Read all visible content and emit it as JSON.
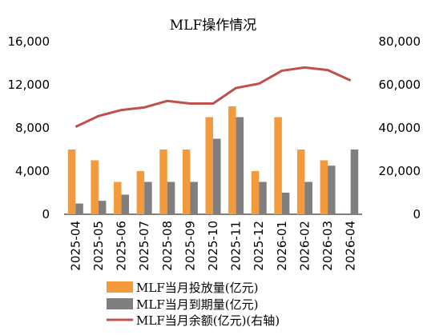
{
  "chart_data": {
    "type": "bar",
    "title": "MLF操作情况",
    "categories": [
      "2025-04",
      "2025-05",
      "2025-06",
      "2025-07",
      "2025-08",
      "2025-09",
      "2025-10",
      "2025-11",
      "2025-12",
      "2026-01",
      "2026-02",
      "2026-03",
      "2026-04"
    ],
    "series": [
      {
        "name": "MLF当月投放量(亿元)",
        "type": "bar",
        "axis": "left",
        "color": "#F39A3C",
        "values": [
          6000,
          5000,
          3000,
          4000,
          6000,
          6000,
          9000,
          10000,
          4000,
          9000,
          6000,
          5000,
          0
        ]
      },
      {
        "name": "MLF当月到期量(亿元)",
        "type": "bar",
        "axis": "left",
        "color": "#7F7F7F",
        "values": [
          1000,
          1250,
          1820,
          3000,
          3000,
          3000,
          7000,
          9000,
          3000,
          2000,
          3000,
          4500,
          6000
        ]
      },
      {
        "name": "MLF当月余额(亿元)(右轴)",
        "type": "line",
        "axis": "right",
        "color": "#C0504D",
        "values": [
          40500,
          45500,
          48300,
          49500,
          52500,
          51300,
          51300,
          58500,
          60500,
          66500,
          68000,
          66800,
          62000
        ]
      }
    ],
    "y_left": {
      "min": 0,
      "max": 16000,
      "ticks": [
        "0",
        "4,000",
        "8,000",
        "12,000",
        "16,000"
      ]
    },
    "y_right": {
      "min": 0,
      "max": 80000,
      "ticks": [
        "0",
        "20,000",
        "40,000",
        "60,000",
        "80,000"
      ]
    },
    "grid": false,
    "legend_position": "bottom"
  }
}
